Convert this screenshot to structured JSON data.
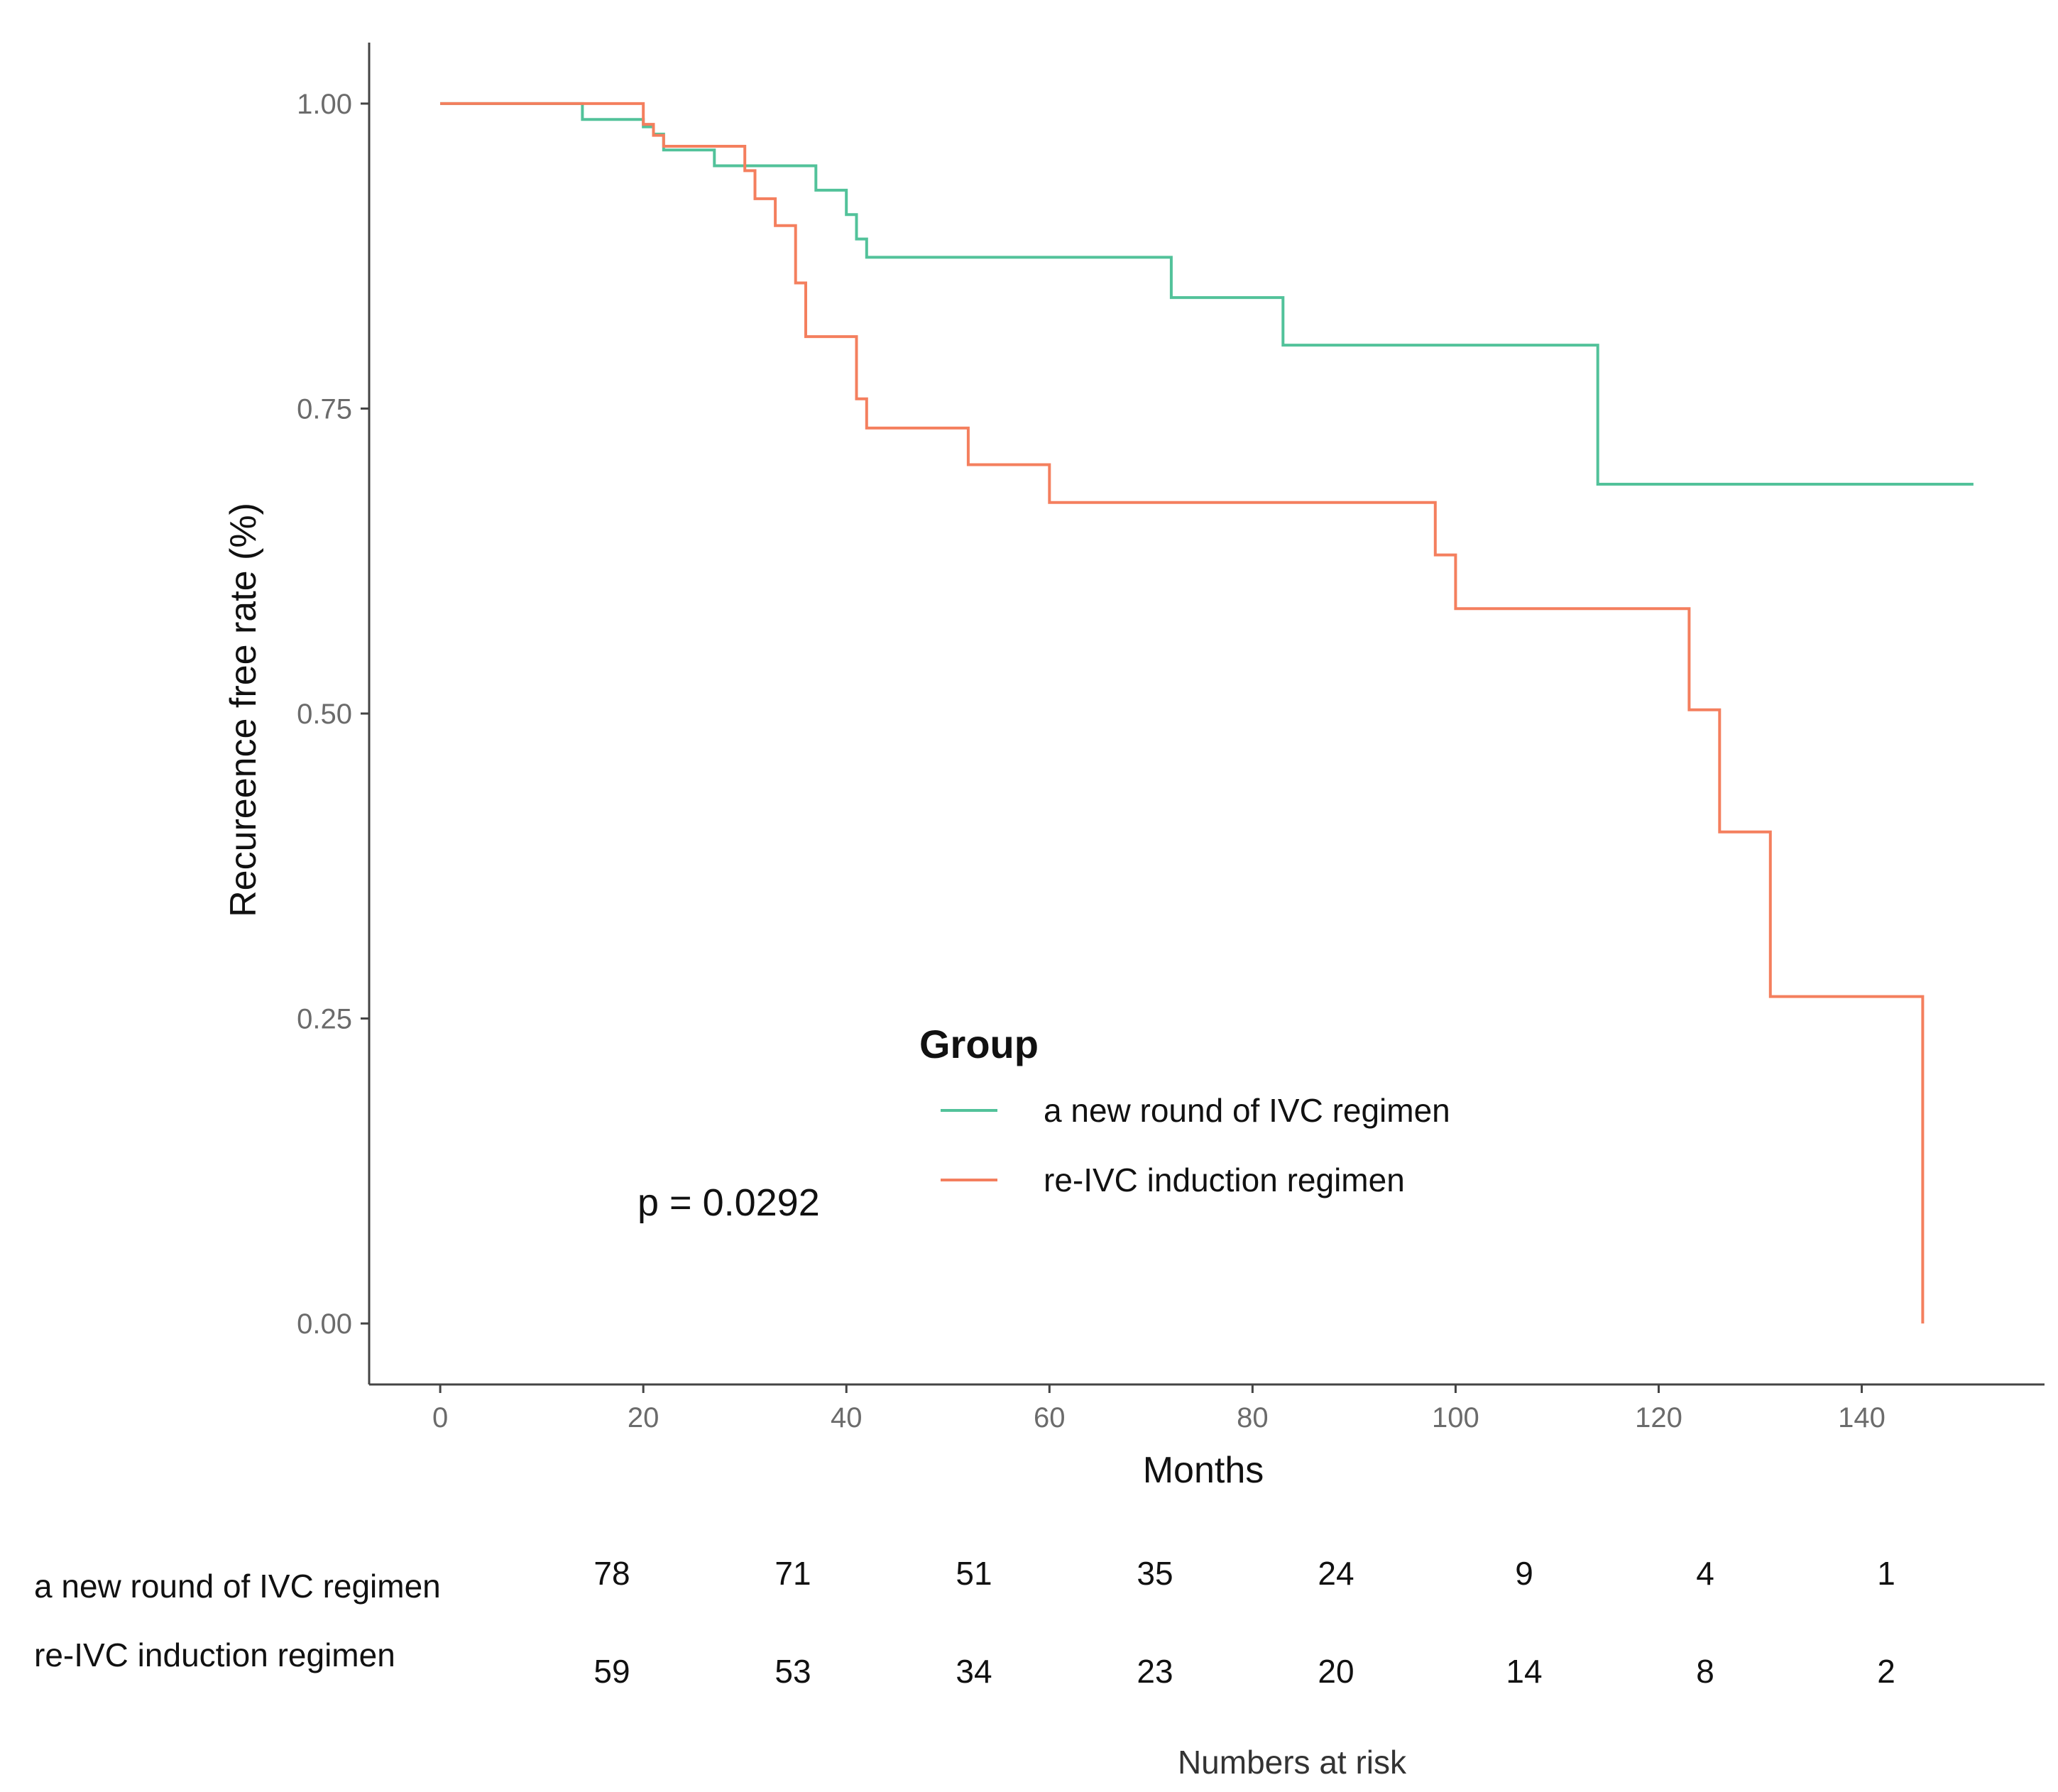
{
  "chart_data": {
    "type": "line",
    "subtype": "kaplan-meier",
    "xlabel": "Months",
    "ylabel": "Recureence free rate (%)",
    "xlim": [
      -7,
      158
    ],
    "ylim": [
      -0.05,
      1.05
    ],
    "x_ticks": [
      0,
      20,
      40,
      60,
      80,
      100,
      120,
      140
    ],
    "x_tick_labels": [
      "0",
      "20",
      "40",
      "60",
      "80",
      "100",
      "120",
      "140"
    ],
    "y_ticks": [
      0,
      0.25,
      0.5,
      0.75,
      1.0
    ],
    "y_tick_labels": [
      "0.00",
      "0.25",
      "0.50",
      "0.75",
      "1.00"
    ],
    "legend": {
      "title": "Group",
      "placement": "center-bottom"
    },
    "annotation": "p = 0.0292",
    "series": [
      {
        "name": "a new round of IVC regimen",
        "color": "#52c29a",
        "x": [
          0,
          14,
          14,
          20,
          20,
          21,
          21,
          22,
          22,
          27,
          27,
          37,
          37,
          40,
          40,
          41,
          41,
          42,
          42,
          72,
          72,
          83,
          83,
          114,
          114,
          151
        ],
        "y": [
          1.0,
          1.0,
          0.987,
          0.987,
          0.981,
          0.981,
          0.975,
          0.975,
          0.962,
          0.962,
          0.949,
          0.949,
          0.929,
          0.929,
          0.909,
          0.909,
          0.889,
          0.889,
          0.874,
          0.874,
          0.841,
          0.841,
          0.802,
          0.802,
          0.688,
          0.688
        ]
      },
      {
        "name": "re-IVC induction regimen",
        "color": "#f47f5e",
        "x": [
          0,
          20,
          20,
          21,
          21,
          22,
          22,
          30,
          30,
          31,
          31,
          33,
          33,
          35,
          35,
          36,
          36,
          41,
          41,
          42,
          42,
          52,
          52,
          60,
          60,
          98,
          98,
          100,
          100,
          123,
          123,
          126,
          126,
          131,
          131,
          146,
          146
        ],
        "y": [
          1.0,
          1.0,
          0.983,
          0.983,
          0.974,
          0.974,
          0.965,
          0.965,
          0.945,
          0.945,
          0.922,
          0.922,
          0.9,
          0.9,
          0.853,
          0.853,
          0.809,
          0.809,
          0.758,
          0.758,
          0.734,
          0.734,
          0.704,
          0.704,
          0.673,
          0.673,
          0.63,
          0.63,
          0.586,
          0.586,
          0.503,
          0.503,
          0.403,
          0.403,
          0.268,
          0.268,
          0.0
        ]
      }
    ],
    "risk_table": {
      "title": "Numbers at risk",
      "rows": [
        {
          "name": "a new round of IVC regimen",
          "values": [
            "78",
            "71",
            "51",
            "35",
            "24",
            "9",
            "4",
            "1"
          ]
        },
        {
          "name": "re-IVC induction regimen",
          "values": [
            "59",
            "53",
            "34",
            "23",
            "20",
            "14",
            "8",
            "2"
          ]
        }
      ]
    }
  }
}
